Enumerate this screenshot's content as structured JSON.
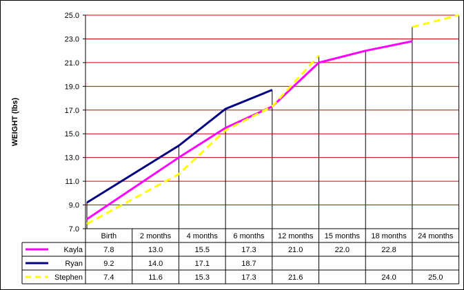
{
  "chart_data": {
    "type": "line",
    "ylabel": "WEIGHT (lbs)",
    "xlabel": "",
    "title": "",
    "ylim": [
      7.0,
      25.0
    ],
    "yticks": [
      "7.0",
      "9.0",
      "11.0",
      "13.0",
      "15.0",
      "17.0",
      "19.0",
      "21.0",
      "23.0",
      "25.0"
    ],
    "grid": "horizontal red gridlines, vertical black drop lines at data points",
    "legend": "in data table rows",
    "categories": [
      "Birth",
      "2 months",
      "4 months",
      "6 months",
      "12 months",
      "15 months",
      "18 months",
      "24 months"
    ],
    "series": [
      {
        "name": "Kayla",
        "color": "#ff00ff",
        "style": "solid",
        "values": [
          7.8,
          13.0,
          15.5,
          17.3,
          21.0,
          22.0,
          22.8,
          null
        ],
        "labels": [
          "7.8",
          "13.0",
          "15.5",
          "17.3",
          "21.0",
          "22.0",
          "22.8",
          ""
        ]
      },
      {
        "name": "Ryan",
        "color": "#000080",
        "style": "solid",
        "values": [
          9.2,
          14.0,
          17.1,
          18.7,
          null,
          null,
          null,
          null
        ],
        "labels": [
          "9.2",
          "14.0",
          "17.1",
          "18.7",
          "",
          "",
          "",
          ""
        ]
      },
      {
        "name": "Stephen",
        "color": "#ffff00",
        "style": "dashed",
        "values": [
          7.4,
          11.6,
          15.3,
          17.3,
          21.6,
          null,
          24.0,
          25.0
        ],
        "labels": [
          "7.4",
          "11.6",
          "15.3",
          "17.3",
          "21.6",
          "",
          "24.0",
          "25.0"
        ]
      }
    ]
  }
}
